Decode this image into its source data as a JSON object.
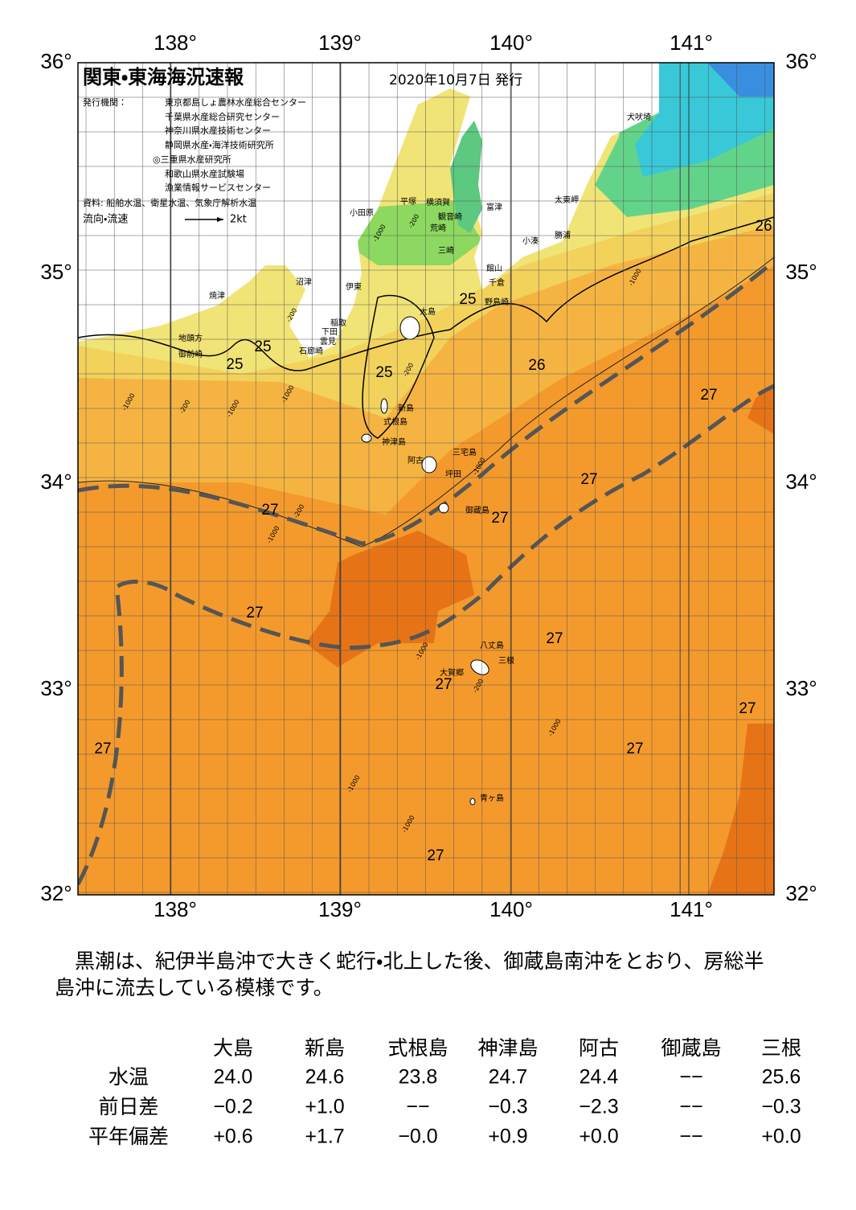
{
  "header": {
    "title": "関東・東海海況速報",
    "date": "2020年10月7日 発行",
    "issuer_label": "発行機関：",
    "issuers": [
      "東京都島しょ農林水産総合センター",
      "千葉県水産総合研究センター",
      "神奈川県水産技術センター",
      "静岡県水産・海洋技術研究所",
      "◎三重県水産研究所",
      "和歌山県水産試験場",
      "漁業情報サービスセンター"
    ],
    "source": "資料: 船舶水温、衛星水温、気象庁解析水温",
    "legend_label": "流向・流速",
    "legend_speed": "2kt"
  },
  "axes": {
    "lon_labels": [
      "138°",
      "139°",
      "140°",
      "141°"
    ],
    "lat_labels": [
      "36°",
      "35°",
      "34°",
      "33°",
      "32°"
    ]
  },
  "places": [
    "小田原",
    "平塚",
    "横須賀",
    "富津",
    "観音崎",
    "荒崎",
    "三崎",
    "館山",
    "千倉",
    "野島崎",
    "小湊",
    "勝浦",
    "太東岬",
    "犬吠埼",
    "沼津",
    "伊東",
    "大島",
    "稲取",
    "下田",
    "雲見",
    "石廊崎",
    "焼津",
    "地頭方",
    "御前崎",
    "新島",
    "式根島",
    "神津島",
    "三宅島",
    "阿古",
    "坪田",
    "御蔵島",
    "八丈島",
    "三根",
    "大賀郷",
    "青ヶ島"
  ],
  "temperature_labels": [
    "26",
    "25",
    "25",
    "25",
    "26",
    "25",
    "27",
    "27",
    "27",
    "27",
    "27",
    "27",
    "27",
    "27",
    "27",
    "27",
    "27"
  ],
  "depth_labels": [
    "-200",
    "-1000",
    "-200",
    "-1000",
    "-200",
    "-1000",
    "-1000",
    "-200",
    "-1000",
    "-200",
    "-1000",
    "-1000",
    "-200",
    "-1000",
    "-1000",
    "-1000",
    "-1000"
  ],
  "paragraph": [
    "　黒潮は、紀伊半島沖で大きく蛇行・北上した後、御蔵島南沖をとおり、房総半",
    "島沖に流去している模様です。"
  ],
  "table": {
    "columns": [
      "大島",
      "新島",
      "式根島",
      "神津島",
      "阿古",
      "御蔵島",
      "三根"
    ],
    "rows": [
      {
        "label": "水温",
        "cells": [
          "24.0",
          "24.6",
          "23.8",
          "24.7",
          "24.4",
          "−−",
          "25.6"
        ]
      },
      {
        "label": "前日差",
        "cells": [
          "−0.2",
          "+1.0",
          "−−",
          "−0.3",
          "−2.3",
          "−−",
          "−0.3"
        ]
      },
      {
        "label": "平年偏差",
        "cells": [
          "+0.6",
          "+1.7",
          "−0.0",
          "+0.9",
          "+0.0",
          "−−",
          "+0.0"
        ]
      }
    ]
  }
}
